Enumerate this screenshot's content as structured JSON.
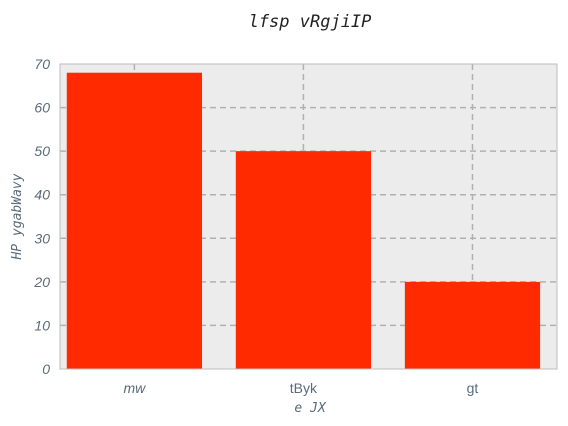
{
  "chart_data": {
    "type": "bar",
    "title": "lfsp vRgjiIP",
    "xlabel": "e JX",
    "ylabel": "HP ygabWavy",
    "categories": [
      "mw",
      "tByk",
      "gt"
    ],
    "values": [
      68,
      50,
      20
    ],
    "ylim": [
      0,
      70
    ],
    "yticks": [
      0,
      10,
      20,
      30,
      40,
      50,
      60,
      70
    ],
    "grid": true,
    "colors": {
      "bar": "#ff2a00",
      "plot_background": "#ececec",
      "grid": "#b0b0b0",
      "spine": "#bdbdbd"
    }
  }
}
